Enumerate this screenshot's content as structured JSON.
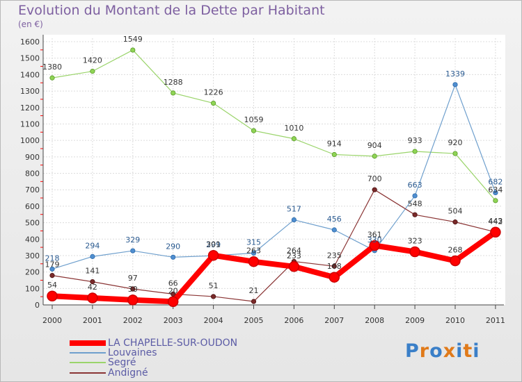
{
  "title": "Evolution du Montant de la Dette par Habitant",
  "unit_label": "(en €)",
  "logo_text": "Proxiti",
  "chart_data": {
    "type": "line",
    "title": "Evolution du Montant de la Dette par Habitant",
    "ylabel": "(en €)",
    "xlabel": "",
    "x": [
      "2000",
      "2001",
      "2002",
      "2003",
      "2004",
      "2005",
      "2006",
      "2007",
      "2008",
      "2009",
      "2010",
      "2011"
    ],
    "ylim": [
      0,
      1600
    ],
    "yticks": [
      0,
      100,
      200,
      300,
      400,
      500,
      600,
      700,
      800,
      900,
      1000,
      1100,
      1200,
      1300,
      1400,
      1500,
      1600
    ],
    "grid": true,
    "legend": "bottom-left",
    "series": [
      {
        "name": "LA CHAPELLE-SUR-OUDON",
        "color": "#ff0000",
        "values": [
          54,
          42,
          30,
          20,
          301,
          263,
          233,
          168,
          361,
          323,
          268,
          442
        ]
      },
      {
        "name": "Louvaines",
        "color": "#6e9fcd",
        "values": [
          218,
          294,
          329,
          290,
          299,
          315,
          517,
          456,
          330,
          663,
          1339,
          682
        ]
      },
      {
        "name": "Segré",
        "color": "#9ad46a",
        "values": [
          1380,
          1420,
          1549,
          1288,
          1226,
          1059,
          1010,
          914,
          904,
          933,
          920,
          634
        ]
      },
      {
        "name": "Andigné",
        "color": "#8a3434",
        "values": [
          179,
          141,
          97,
          66,
          51,
          21,
          264,
          235,
          700,
          548,
          504,
          443
        ]
      }
    ]
  }
}
